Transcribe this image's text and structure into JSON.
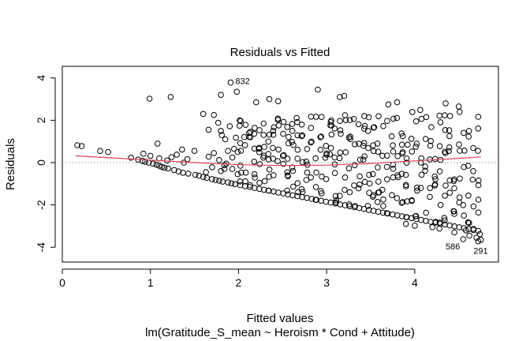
{
  "chart_data": {
    "type": "scatter",
    "title": "Residuals vs Fitted",
    "xlabel": "Fitted values",
    "ylabel": "Residuals",
    "subtitle": "lm(Gratitude_S_mean ~ Heroism * Cond + Attitude)",
    "xlim": [
      0.0,
      4.95
    ],
    "ylim": [
      -4.7,
      4.55
    ],
    "xticks": [
      "0",
      "1",
      "2",
      "3",
      "4"
    ],
    "yticks": [
      "-4",
      "-2",
      "0",
      "2",
      "4"
    ],
    "grid": false,
    "reference_line_y": 0,
    "point_color": "#000000",
    "smooth_color": "#e0405a",
    "reference_color": "#b0b0b0",
    "outliers": [
      {
        "label": "832",
        "x": 1.91,
        "y": 3.78
      },
      {
        "label": "586",
        "x": 4.55,
        "y": -3.62
      },
      {
        "label": "291",
        "x": 4.72,
        "y": -3.72
      }
    ],
    "smooth": {
      "x": [
        0.15,
        0.5,
        1.0,
        1.5,
        2.0,
        2.5,
        3.0,
        3.5,
        4.0,
        4.5,
        4.75
      ],
      "y": [
        0.32,
        0.24,
        0.12,
        0.0,
        -0.1,
        -0.14,
        -0.12,
        -0.04,
        0.08,
        0.2,
        0.27
      ]
    },
    "series": [
      {
        "x": [
          0.17,
          0.22,
          0.43,
          0.52,
          0.78,
          0.86,
          0.91,
          0.94,
          0.98,
          1.03,
          1.07,
          1.1,
          1.13,
          1.16,
          1.2,
          1.27,
          1.32,
          1.37,
          1.43,
          1.51,
          1.55,
          1.6,
          1.64,
          1.7,
          1.74,
          1.78,
          1.82,
          1.88,
          1.92,
          1.96,
          0.92,
          1.0,
          1.08,
          1.24,
          1.3,
          1.36,
          1.42,
          1.5,
          1.6,
          1.66,
          1.72,
          1.77,
          1.81,
          1.85,
          1.9,
          1.95,
          1.99,
          1.66,
          1.72,
          1.78,
          1.84,
          1.93,
          1.99,
          1.63,
          1.7,
          1.8,
          1.86,
          1.93,
          1.97,
          2.02,
          0.99,
          1.23,
          1.1,
          1.19,
          1.38,
          1.8,
          1.84,
          1.88
        ],
        "y": [
          0.82,
          0.78,
          0.55,
          0.5,
          0.23,
          0.14,
          0.08,
          0.04,
          0.0,
          -0.05,
          -0.1,
          -0.15,
          -0.2,
          -0.24,
          -0.28,
          -0.35,
          -0.42,
          -0.48,
          -0.52,
          -0.58,
          -0.62,
          -0.68,
          -0.72,
          -0.78,
          -0.82,
          -0.86,
          -0.9,
          -0.94,
          -0.98,
          -1.02,
          0.42,
          0.32,
          0.9,
          0.26,
          0.38,
          0.62,
          0.16,
          0.55,
          2.3,
          1.55,
          2.25,
          1.88,
          1.3,
          1.1,
          1.72,
          0.65,
          0.5,
          0.28,
          0.45,
          0.12,
          -0.12,
          -0.3,
          -0.55,
          -0.45,
          -0.22,
          1.5,
          -0.05,
          0.24,
          1.18,
          0.92,
          3.02,
          3.1,
          0.2,
          0.1,
          0.0,
          -0.4,
          -0.3,
          0.55
        ]
      }
    ]
  }
}
